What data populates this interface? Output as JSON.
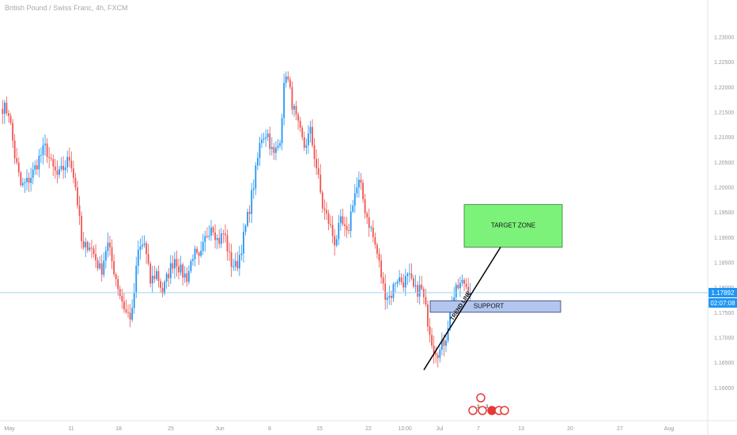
{
  "symbol_title": "British Pound / Swiss Franc, 4h, FXCM",
  "colors": {
    "up": "#2196f3",
    "down": "#ef5350",
    "price_line": "#9fd3ee",
    "badge": "#2196f3",
    "target_fill": "#7cf27a",
    "target_stroke": "#2e7d32",
    "support_fill": "#b3c6f0",
    "support_stroke": "#2a3a66",
    "trend_line": "#000000",
    "axis_text": "#9598a1",
    "event_icon": "#e53935"
  },
  "annotations": {
    "target_zone": "TARGET ZONE",
    "support": "SUPPORT",
    "trend_line": "TREND LINE"
  },
  "price_badge": {
    "price": "1.17892",
    "countdown": "02:07:08"
  },
  "event_markers": {
    "counts": [
      "3",
      "3"
    ]
  },
  "chart_data": {
    "type": "candlestick",
    "y_ticks": [
      "1.23000",
      "1.22500",
      "1.22000",
      "1.21500",
      "1.21000",
      "1.20500",
      "1.20000",
      "1.19500",
      "1.19000",
      "1.18500",
      "1.18000",
      "1.17500",
      "1.17000",
      "1.16500",
      "1.16000"
    ],
    "x_ticks": [
      "May",
      "11",
      "18",
      "25",
      "Jun",
      "8",
      "15",
      "22",
      "13:00",
      "Jul",
      "7",
      "13",
      "20",
      "27",
      "Aug"
    ],
    "ylim": [
      1.1565,
      1.2345
    ],
    "last_price": 1.17892,
    "anchor_closes": [
      1.216,
      1.215,
      1.206,
      1.2,
      1.201,
      1.203,
      1.206,
      1.208,
      1.204,
      1.202,
      1.204,
      1.206,
      1.199,
      1.187,
      1.189,
      1.186,
      1.183,
      1.189,
      1.184,
      1.179,
      1.175,
      1.174,
      1.187,
      1.189,
      1.181,
      1.183,
      1.179,
      1.183,
      1.186,
      1.183,
      1.182,
      1.187,
      1.185,
      1.19,
      1.193,
      1.189,
      1.191,
      1.185,
      1.184,
      1.189,
      1.195,
      1.202,
      1.21,
      1.211,
      1.206,
      1.209,
      1.2235,
      1.217,
      1.212,
      1.208,
      1.211,
      1.204,
      1.196,
      1.193,
      1.189,
      1.193,
      1.19,
      1.198,
      1.201,
      1.195,
      1.191,
      1.186,
      1.179,
      1.178,
      1.182,
      1.181,
      1.182,
      1.179,
      1.18,
      1.174,
      1.168,
      1.167,
      1.17,
      1.177,
      1.18,
      1.181,
      1.179
    ],
    "annotations": {
      "target_zone": {
        "y_top": 1.1965,
        "y_bottom": 1.188
      },
      "support": {
        "y_top": 1.1773,
        "y_bottom": 1.175
      },
      "trend_line": {
        "y_start": 1.1635,
        "y_end": 1.188
      }
    }
  }
}
